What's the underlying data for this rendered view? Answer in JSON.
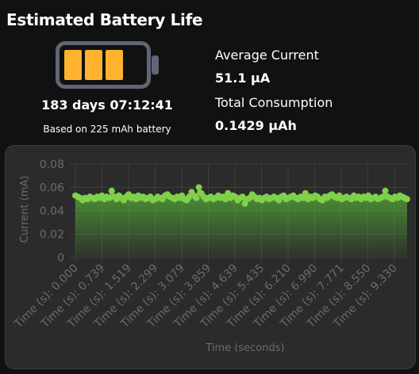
{
  "title": "Estimated Battery Life",
  "battery": {
    "icon": "battery-icon",
    "level_fraction": 0.75,
    "fill_color": "#ffb22e",
    "outline_color": "#5f6674",
    "duration": "183 days 07:12:41",
    "basis": "Based on 225 mAh battery"
  },
  "stats": {
    "average_label": "Average Current",
    "average_value": "51.1 µA",
    "total_label": "Total Consumption",
    "total_value": "0.1429 µAh"
  },
  "chart_data": {
    "type": "area",
    "ylabel": "Current (mA)",
    "xlabel": "Time (seconds)",
    "ylim": [
      0,
      0.08
    ],
    "yticks": [
      "0",
      "0.02",
      "0.04",
      "0.06",
      "0.08"
    ],
    "xticks": [
      "Time (s): 0.000",
      "Time (s): 0.739",
      "Time (s): 1.519",
      "Time (s): 2.299",
      "Time (s): 3.079",
      "Time (s): 3.859",
      "Time (s): 4.639",
      "Time (s): 5.435",
      "Time (s): 6.210",
      "Time (s): 6.990",
      "Time (s): 7.771",
      "Time (s): 8.550",
      "Time (s): 9.330"
    ],
    "grid": true,
    "line_color": "#7fd14a",
    "series": [
      {
        "values": [
          0.053,
          0.052,
          0.051,
          0.049,
          0.051,
          0.05,
          0.052,
          0.051,
          0.05,
          0.052,
          0.051,
          0.053,
          0.05,
          0.052,
          0.051,
          0.057,
          0.052,
          0.05,
          0.053,
          0.051,
          0.049,
          0.052,
          0.054,
          0.051,
          0.052,
          0.05,
          0.053,
          0.051,
          0.052,
          0.05,
          0.051,
          0.052,
          0.049,
          0.05,
          0.052,
          0.051,
          0.05,
          0.053,
          0.054,
          0.052,
          0.051,
          0.05,
          0.052,
          0.051,
          0.053,
          0.05,
          0.049,
          0.052,
          0.056,
          0.053,
          0.051,
          0.06,
          0.055,
          0.052,
          0.05,
          0.051,
          0.052,
          0.05,
          0.051,
          0.053,
          0.051,
          0.052,
          0.05,
          0.055,
          0.051,
          0.053,
          0.052,
          0.049,
          0.051,
          0.052,
          0.046,
          0.05,
          0.051,
          0.054,
          0.052,
          0.05,
          0.051,
          0.049,
          0.051,
          0.052,
          0.05,
          0.051,
          0.052,
          0.051,
          0.049,
          0.052,
          0.053,
          0.05,
          0.051,
          0.052,
          0.053,
          0.051,
          0.05,
          0.052,
          0.051,
          0.055,
          0.05,
          0.052,
          0.051,
          0.053,
          0.052,
          0.05,
          0.049,
          0.052,
          0.051,
          0.053,
          0.054,
          0.052,
          0.051,
          0.053,
          0.05,
          0.051,
          0.052,
          0.051,
          0.05,
          0.053,
          0.051,
          0.052,
          0.05,
          0.052,
          0.051,
          0.053,
          0.05,
          0.051,
          0.052,
          0.05,
          0.051,
          0.052,
          0.057,
          0.052,
          0.051,
          0.05,
          0.052,
          0.051,
          0.053,
          0.052,
          0.051,
          0.05
        ]
      }
    ]
  }
}
